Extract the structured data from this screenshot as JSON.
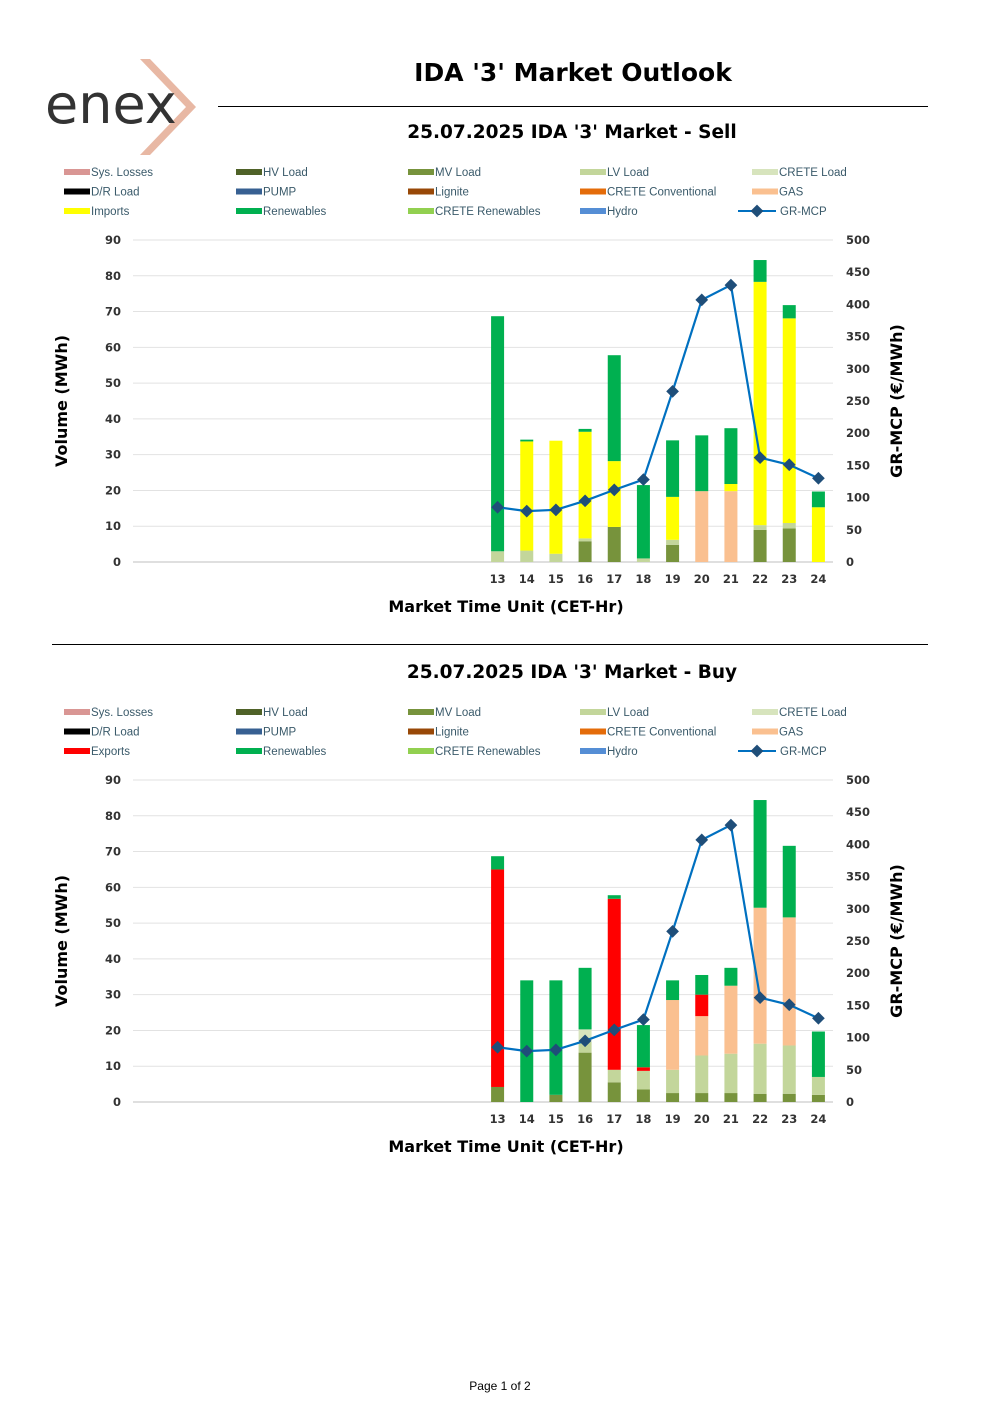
{
  "page": {
    "logo_text": "enex",
    "title": "IDA '3' Market Outlook",
    "footer": "Page 1 of 2"
  },
  "colors": {
    "Sys. Losses": "#d99694",
    "HV Load": "#4f6228",
    "MV Load": "#77933c",
    "LV Load": "#c3d69b",
    "CRETE Load": "#d7e4bd",
    "D/R Load": "#000000",
    "PUMP": "#376092",
    "Lignite": "#984807",
    "CRETE Conventional": "#e46c0a",
    "GAS": "#fac090",
    "Imports": "#ffff00",
    "Exports": "#ff0000",
    "Renewables": "#00b050",
    "CRETE Renewables": "#92d050",
    "Hydro": "#558ed5",
    "GR-MCP": "#0070c0",
    "GR-MCP-marker": "#1f4e79"
  },
  "chart_data": [
    {
      "id": "sell",
      "type": "bar",
      "title": "25.07.2025  IDA '3' Market - Sell",
      "xlabel": "Market Time Unit (CET-Hr)",
      "ylabel": "Volume (MWh)",
      "y2label": "GR-MCP (€/MWh)",
      "ylim": [
        0,
        90
      ],
      "yticks": [
        "0",
        "10",
        "20",
        "30",
        "40",
        "50",
        "60",
        "70",
        "80",
        "90"
      ],
      "y2lim": [
        0,
        500
      ],
      "y2ticks": [
        "0",
        "50",
        "100",
        "150",
        "200",
        "250",
        "300",
        "350",
        "400",
        "450",
        "500"
      ],
      "legend": [
        "Sys. Losses",
        "HV Load",
        "MV Load",
        "LV Load",
        "CRETE Load",
        "D/R Load",
        "PUMP",
        "Lignite",
        "CRETE Conventional",
        "GAS",
        "Imports",
        "Renewables",
        "CRETE Renewables",
        "Hydro",
        "GR-MCP"
      ],
      "categories": [
        "13",
        "14",
        "15",
        "16",
        "17",
        "18",
        "19",
        "20",
        "21",
        "22",
        "23",
        "24"
      ],
      "series": [
        {
          "name": "MV Load",
          "values": [
            0,
            0,
            0,
            5.8,
            9.8,
            0,
            4.8,
            0,
            0,
            9.0,
            9.4,
            0
          ]
        },
        {
          "name": "LV Load",
          "values": [
            3.0,
            3.2,
            2.3,
            0.8,
            0,
            1.0,
            1.4,
            0,
            0,
            1.3,
            1.5,
            0
          ]
        },
        {
          "name": "GAS",
          "values": [
            0,
            0,
            0,
            0,
            0,
            0,
            0,
            19.8,
            19.8,
            0,
            0,
            0
          ]
        },
        {
          "name": "Imports",
          "values": [
            0,
            30.5,
            31.6,
            29.8,
            18.4,
            0,
            12.0,
            0,
            2.0,
            68.0,
            57.2,
            15.3
          ]
        },
        {
          "name": "Renewables",
          "values": [
            65.7,
            0.5,
            0,
            0.8,
            29.6,
            20.5,
            15.8,
            15.6,
            15.6,
            6.1,
            3.7,
            4.4
          ]
        }
      ],
      "line": {
        "name": "GR-MCP",
        "values": [
          85,
          79,
          81,
          95,
          112,
          128,
          265,
          407,
          430,
          162,
          151,
          130
        ]
      }
    },
    {
      "id": "buy",
      "type": "bar",
      "title": "25.07.2025  IDA '3' Market - Buy",
      "xlabel": "Market Time Unit (CET-Hr)",
      "ylabel": "Volume (MWh)",
      "y2label": "GR-MCP (€/MWh)",
      "ylim": [
        0,
        90
      ],
      "yticks": [
        "0",
        "10",
        "20",
        "30",
        "40",
        "50",
        "60",
        "70",
        "80",
        "90"
      ],
      "y2lim": [
        0,
        500
      ],
      "y2ticks": [
        "0",
        "50",
        "100",
        "150",
        "200",
        "250",
        "300",
        "350",
        "400",
        "450",
        "500"
      ],
      "legend": [
        "Sys. Losses",
        "HV Load",
        "MV Load",
        "LV Load",
        "CRETE Load",
        "D/R Load",
        "PUMP",
        "Lignite",
        "CRETE Conventional",
        "GAS",
        "Exports",
        "Renewables",
        "CRETE Renewables",
        "Hydro",
        "GR-MCP"
      ],
      "categories": [
        "13",
        "14",
        "15",
        "16",
        "17",
        "18",
        "19",
        "20",
        "21",
        "22",
        "23",
        "24"
      ],
      "series": [
        {
          "name": "MV Load",
          "values": [
            4.2,
            0,
            2.0,
            13.8,
            5.5,
            3.5,
            2.5,
            2.5,
            2.5,
            2.3,
            2.3,
            2.0
          ]
        },
        {
          "name": "LV Load",
          "values": [
            0,
            0,
            0,
            3.0,
            3.5,
            5.2,
            6.5,
            10.5,
            11.0,
            14.0,
            13.5,
            5.0
          ]
        },
        {
          "name": "CRETE Load",
          "values": [
            0,
            0,
            0,
            3.5,
            0,
            0,
            0,
            0,
            0,
            0,
            0,
            0
          ]
        },
        {
          "name": "GAS",
          "values": [
            0,
            0,
            0,
            0,
            0,
            0,
            19.5,
            11.0,
            19.0,
            38.0,
            35.8,
            0
          ]
        },
        {
          "name": "Exports",
          "values": [
            60.8,
            0,
            0,
            0,
            47.8,
            1.0,
            0,
            6.0,
            0,
            0,
            0,
            0
          ]
        },
        {
          "name": "Renewables",
          "values": [
            3.7,
            34.0,
            32.0,
            17.2,
            1.0,
            11.8,
            5.5,
            5.5,
            5.0,
            30.1,
            20.0,
            12.7
          ]
        }
      ],
      "line": {
        "name": "GR-MCP",
        "values": [
          85,
          79,
          81,
          95,
          112,
          128,
          265,
          407,
          430,
          162,
          151,
          130
        ]
      }
    }
  ]
}
